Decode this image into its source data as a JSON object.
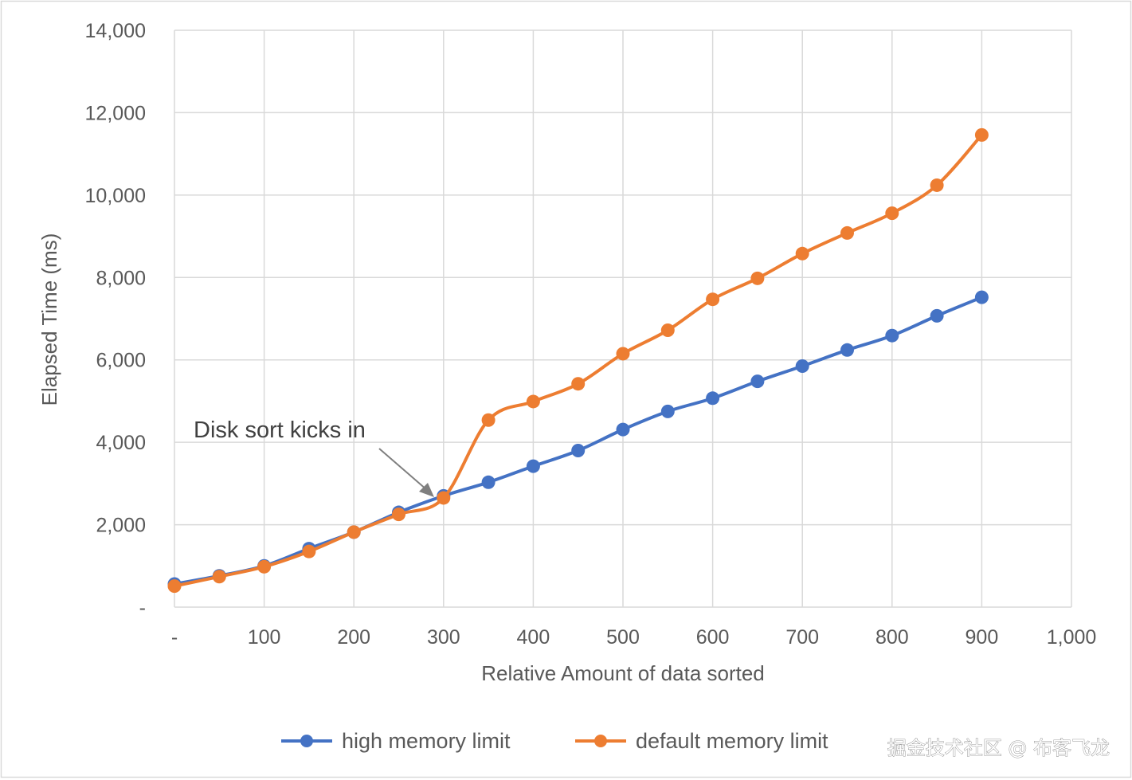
{
  "chart_data": {
    "type": "line",
    "title": "",
    "xlabel": "Relative Amount of data sorted",
    "ylabel": "Elapsed Time (ms)",
    "xlim": [
      0,
      1000
    ],
    "ylim": [
      0,
      14000
    ],
    "x_ticks": [
      0,
      100,
      200,
      300,
      400,
      500,
      600,
      700,
      800,
      900,
      1000
    ],
    "x_tick_labels": [
      "-",
      "100",
      "200",
      "300",
      "400",
      "500",
      "600",
      "700",
      "800",
      "900",
      "1,000"
    ],
    "y_ticks": [
      0,
      2000,
      4000,
      6000,
      8000,
      10000,
      12000,
      14000
    ],
    "y_tick_labels": [
      "-",
      "2,000",
      "4,000",
      "6,000",
      "8,000",
      "10,000",
      "12,000",
      "14,000"
    ],
    "grid": true,
    "legend_position": "bottom",
    "series": [
      {
        "name": "high memory limit",
        "color": "#4472C4",
        "x": [
          0,
          50,
          100,
          150,
          200,
          250,
          300,
          350,
          400,
          450,
          500,
          550,
          600,
          650,
          700,
          750,
          800,
          850,
          900
        ],
        "values": [
          560,
          760,
          1000,
          1420,
          1820,
          2300,
          2700,
          3030,
          3420,
          3800,
          4310,
          4750,
          5070,
          5480,
          5850,
          6240,
          6590,
          7070,
          7520
        ]
      },
      {
        "name": "default memory limit",
        "color": "#ED7D31",
        "x": [
          0,
          50,
          100,
          150,
          200,
          250,
          300,
          350,
          400,
          450,
          500,
          550,
          600,
          650,
          700,
          750,
          800,
          850,
          900
        ],
        "values": [
          510,
          740,
          980,
          1350,
          1820,
          2250,
          2650,
          4540,
          4990,
          5420,
          6150,
          6720,
          7470,
          7980,
          8580,
          9080,
          9560,
          10240,
          11460
        ]
      }
    ],
    "annotations": [
      {
        "text": "Disk sort kicks in",
        "x": 300,
        "y": 2650
      }
    ]
  },
  "watermark": "掘金技术社区 @ 布客飞龙"
}
